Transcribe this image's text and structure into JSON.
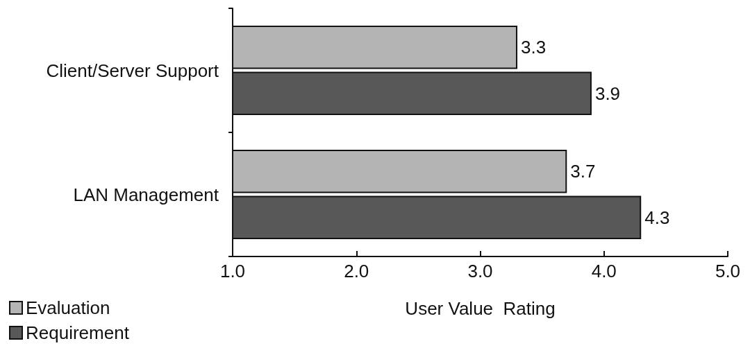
{
  "chart_data": {
    "type": "bar",
    "orientation": "horizontal",
    "xlabel": "User Value  Rating",
    "categories": [
      "Client/Server Support",
      "LAN Management"
    ],
    "series": [
      {
        "name": "Evaluation",
        "color": "#b4b4b4",
        "values": [
          3.3,
          3.7
        ]
      },
      {
        "name": "Requirement",
        "color": "#585858",
        "values": [
          3.9,
          4.3
        ]
      }
    ],
    "xlim": [
      1,
      5
    ],
    "xticks": [
      {
        "value": 1,
        "label": "1.0"
      },
      {
        "value": 2,
        "label": "2.0"
      },
      {
        "value": 3,
        "label": "3.0"
      },
      {
        "value": 4,
        "label": "4.0"
      },
      {
        "value": 5,
        "label": "5.0"
      }
    ],
    "data_labels": true,
    "grid": false,
    "legend": "bottom left"
  }
}
